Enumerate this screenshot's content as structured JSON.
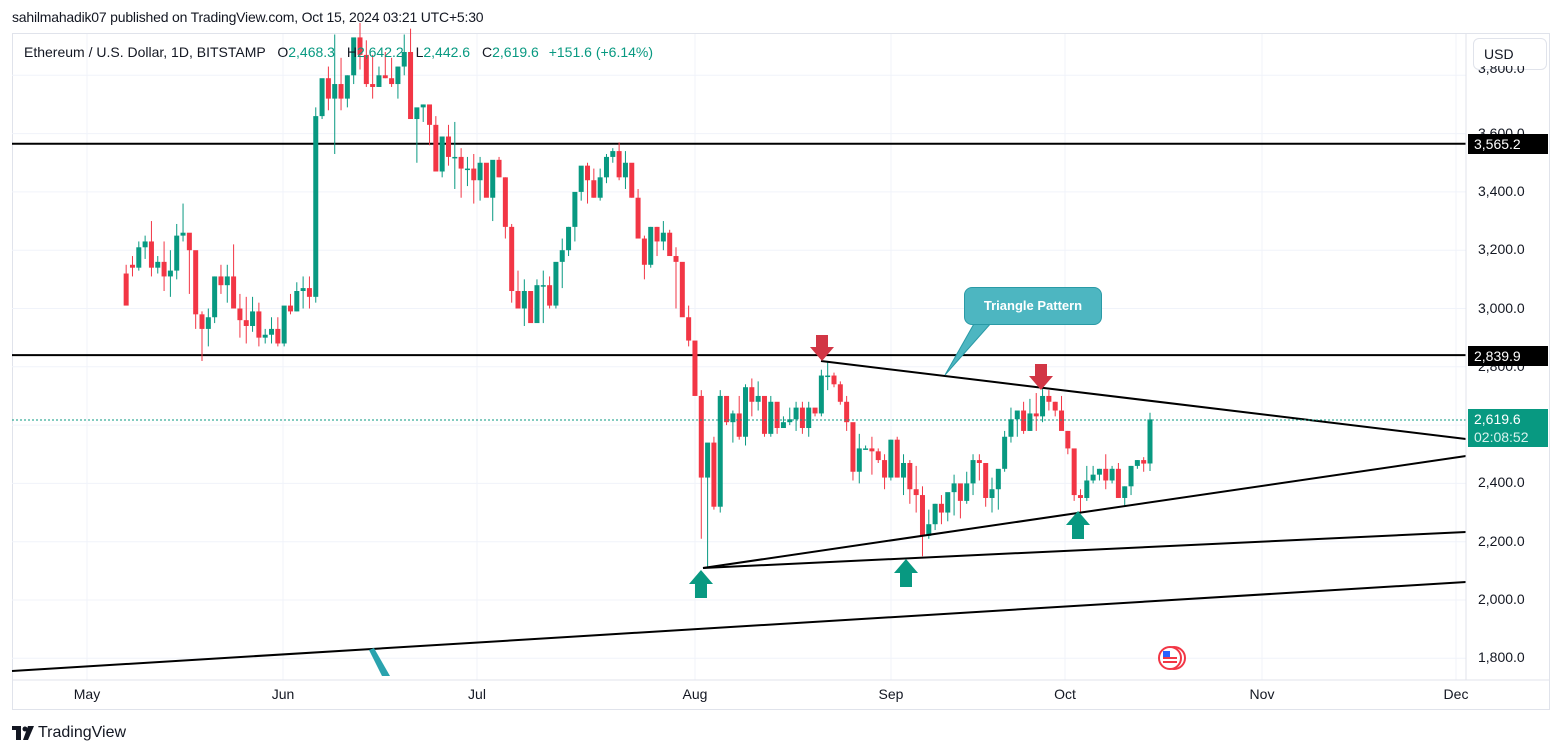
{
  "header": {
    "publish_line": "sahilmahadik07 published on TradingView.com, Oct 15, 2024 03:21 UTC+5:30"
  },
  "legend": {
    "symbol": "Ethereum / U.S. Dollar, 1D, BITSTAMP",
    "open_label": "O",
    "open": "2,468.3",
    "high_label": "H",
    "high": "2,642.2",
    "low_label": "L",
    "low": "2,442.6",
    "close_label": "C",
    "close": "2,619.6",
    "change": "+151.6 (+6.14%)"
  },
  "currency_button": "USD",
  "price_axis": {
    "ticks": [
      "3,800.0",
      "3,600.0",
      "3,400.0",
      "3,200.0",
      "3,000.0",
      "2,800.0",
      "2,600.0",
      "2,400.0",
      "2,200.0",
      "2,000.0",
      "1,800.0"
    ],
    "labels": {
      "resistance_upper": "3,565.2",
      "resistance_lower": "2,839.9",
      "last_price": "2,619.6",
      "countdown": "02:08:52"
    }
  },
  "time_axis": {
    "ticks": [
      "May",
      "Jun",
      "Jul",
      "Aug",
      "Sep",
      "Oct",
      "Nov",
      "Dec"
    ]
  },
  "annotations": {
    "callout_text": "Triangle Pattern"
  },
  "branding": {
    "logo_text": "TradingView"
  },
  "colors": {
    "up": "#089981",
    "down": "#f23645",
    "line": "#000000",
    "callout": "#4db6c1",
    "arrow_down": "#d23645",
    "arrow_up": "#089981"
  },
  "chart_data": {
    "type": "candlestick",
    "title": "Ethereum / U.S. Dollar, 1D, BITSTAMP",
    "xlabel": "",
    "ylabel": "USD",
    "ylim": [
      1750,
      3950
    ],
    "x_range": [
      "2024-04-25",
      "2024-12-01"
    ],
    "grid": true,
    "horizontal_levels": [
      3565.2,
      2839.9
    ],
    "last": {
      "open": 2468.3,
      "high": 2642.2,
      "low": 2442.6,
      "close": 2619.6,
      "change": 151.6,
      "change_pct": 6.14
    },
    "trendlines": [
      {
        "name": "triangle-upper",
        "from": [
          "2024-08-23",
          2820
        ],
        "to": [
          "2024-12-01",
          2540
        ]
      },
      {
        "name": "triangle-lower",
        "from": [
          "2024-08-05",
          2110
        ],
        "to": [
          "2024-12-01",
          2500
        ]
      },
      {
        "name": "support-1",
        "from": [
          "2024-08-05",
          2110
        ],
        "to": [
          "2024-12-01",
          2230
        ]
      },
      {
        "name": "support-2",
        "from": [
          "2024-04-25",
          1760
        ],
        "to": [
          "2024-12-01",
          2060
        ]
      }
    ],
    "markers": [
      {
        "type": "down-arrow",
        "date": "2024-08-23",
        "price": 2840
      },
      {
        "type": "down-arrow",
        "date": "2024-09-27",
        "price": 2720
      },
      {
        "type": "up-arrow",
        "date": "2024-08-05",
        "price": 2110
      },
      {
        "type": "up-arrow",
        "date": "2024-09-06",
        "price": 2150
      },
      {
        "type": "up-arrow",
        "date": "2024-10-03",
        "price": 2310
      }
    ],
    "candles": [
      [
        3120,
        3150,
        3060,
        3010
      ],
      [
        3150,
        3180,
        3110,
        3140
      ],
      [
        3140,
        3230,
        3130,
        3210
      ],
      [
        3210,
        3250,
        3170,
        3230
      ],
      [
        3230,
        3300,
        3110,
        3140
      ],
      [
        3140,
        3180,
        3120,
        3160
      ],
      [
        3160,
        3230,
        3060,
        3110
      ],
      [
        3110,
        3200,
        3040,
        3130
      ],
      [
        3130,
        3290,
        3100,
        3250
      ],
      [
        3250,
        3360,
        3230,
        3260
      ],
      [
        3260,
        3240,
        3050,
        3200
      ],
      [
        3200,
        3190,
        2930,
        2980
      ],
      [
        2980,
        2990,
        2820,
        2930
      ],
      [
        2930,
        3000,
        2870,
        2970
      ],
      [
        2970,
        3110,
        2950,
        3110
      ],
      [
        3110,
        3150,
        3050,
        3080
      ],
      [
        3080,
        3150,
        3020,
        3110
      ],
      [
        3110,
        3220,
        3020,
        3000
      ],
      [
        3000,
        3050,
        2900,
        2960
      ],
      [
        2960,
        3040,
        2880,
        2940
      ],
      [
        2940,
        3040,
        2920,
        2990
      ],
      [
        2990,
        3020,
        2870,
        2900
      ],
      [
        2900,
        2930,
        2880,
        2910
      ],
      [
        2910,
        2970,
        2880,
        2930
      ],
      [
        2930,
        2970,
        2870,
        2880
      ],
      [
        2880,
        2950,
        2870,
        3010
      ],
      [
        3010,
        3050,
        2980,
        2990
      ],
      [
        2990,
        3090,
        2990,
        3060
      ],
      [
        3060,
        3110,
        3000,
        3070
      ],
      [
        3070,
        3110,
        3000,
        3040
      ],
      [
        3040,
        3690,
        3020,
        3660
      ],
      [
        3660,
        3720,
        3650,
        3790
      ],
      [
        3790,
        3830,
        3680,
        3720
      ],
      [
        3720,
        3940,
        3530,
        3770
      ],
      [
        3770,
        3860,
        3680,
        3720
      ],
      [
        3720,
        3800,
        3690,
        3800
      ],
      [
        3800,
        3910,
        3770,
        3930
      ],
      [
        3930,
        3980,
        3820,
        3870
      ],
      [
        3870,
        3920,
        3760,
        3770
      ],
      [
        3770,
        3870,
        3720,
        3760
      ],
      [
        3760,
        3830,
        3760,
        3800
      ],
      [
        3800,
        3880,
        3790,
        3790
      ],
      [
        3790,
        3860,
        3760,
        3770
      ],
      [
        3770,
        3830,
        3720,
        3830
      ],
      [
        3830,
        3940,
        3800,
        3880
      ],
      [
        3880,
        3960,
        3800,
        3650
      ],
      [
        3650,
        3680,
        3500,
        3690
      ],
      [
        3690,
        3700,
        3640,
        3700
      ],
      [
        3700,
        3680,
        3560,
        3630
      ],
      [
        3630,
        3660,
        3470,
        3470
      ],
      [
        3470,
        3590,
        3450,
        3590
      ],
      [
        3590,
        3630,
        3490,
        3520
      ],
      [
        3520,
        3640,
        3410,
        3520
      ],
      [
        3520,
        3550,
        3380,
        3480
      ],
      [
        3480,
        3520,
        3420,
        3480
      ],
      [
        3480,
        3530,
        3360,
        3440
      ],
      [
        3440,
        3520,
        3370,
        3500
      ],
      [
        3500,
        3460,
        3390,
        3380
      ],
      [
        3380,
        3500,
        3300,
        3510
      ],
      [
        3510,
        3520,
        3450,
        3450
      ],
      [
        3450,
        3450,
        3240,
        3280
      ],
      [
        3280,
        3290,
        3020,
        3060
      ],
      [
        3060,
        3130,
        3000,
        3000
      ],
      [
        3000,
        3100,
        2940,
        3060
      ],
      [
        3060,
        3040,
        2960,
        2950
      ],
      [
        2950,
        3100,
        2960,
        3080
      ],
      [
        3080,
        3130,
        2950,
        3080
      ],
      [
        3080,
        3110,
        3000,
        3010
      ],
      [
        3010,
        3150,
        3000,
        3160
      ],
      [
        3160,
        3240,
        3070,
        3200
      ],
      [
        3200,
        3280,
        3180,
        3280
      ],
      [
        3280,
        3340,
        3230,
        3400
      ],
      [
        3400,
        3470,
        3370,
        3490
      ],
      [
        3490,
        3500,
        3360,
        3440
      ],
      [
        3440,
        3480,
        3380,
        3380
      ],
      [
        3380,
        3480,
        3370,
        3450
      ],
      [
        3450,
        3530,
        3430,
        3520
      ],
      [
        3520,
        3550,
        3500,
        3540
      ],
      [
        3540,
        3570,
        3440,
        3450
      ],
      [
        3450,
        3540,
        3410,
        3500
      ],
      [
        3500,
        3490,
        3380,
        3380
      ],
      [
        3380,
        3410,
        3320,
        3240
      ],
      [
        3240,
        3250,
        3100,
        3150
      ],
      [
        3150,
        3280,
        3140,
        3280
      ],
      [
        3280,
        3280,
        3180,
        3230
      ],
      [
        3230,
        3300,
        3200,
        3260
      ],
      [
        3260,
        3270,
        3190,
        3180
      ],
      [
        3180,
        3210,
        3000,
        3160
      ],
      [
        3160,
        3140,
        2990,
        2970
      ],
      [
        2970,
        3010,
        2870,
        2890
      ],
      [
        2890,
        2880,
        2810,
        2700
      ],
      [
        2700,
        2720,
        2210,
        2420
      ],
      [
        2420,
        2530,
        2110,
        2540
      ],
      [
        2540,
        2560,
        2310,
        2320
      ],
      [
        2320,
        2720,
        2300,
        2700
      ],
      [
        2700,
        2660,
        2600,
        2610
      ],
      [
        2610,
        2650,
        2540,
        2640
      ],
      [
        2640,
        2700,
        2550,
        2560
      ],
      [
        2560,
        2740,
        2530,
        2730
      ],
      [
        2730,
        2760,
        2630,
        2680
      ],
      [
        2680,
        2750,
        2650,
        2700
      ],
      [
        2700,
        2660,
        2560,
        2570
      ],
      [
        2570,
        2700,
        2560,
        2680
      ],
      [
        2680,
        2630,
        2570,
        2590
      ],
      [
        2590,
        2630,
        2590,
        2610
      ],
      [
        2610,
        2660,
        2600,
        2620
      ],
      [
        2620,
        2680,
        2580,
        2660
      ],
      [
        2660,
        2680,
        2570,
        2590
      ],
      [
        2590,
        2680,
        2560,
        2660
      ],
      [
        2660,
        2640,
        2630,
        2640
      ],
      [
        2640,
        2790,
        2630,
        2770
      ],
      [
        2770,
        2820,
        2720,
        2770
      ],
      [
        2770,
        2780,
        2730,
        2740
      ],
      [
        2740,
        2750,
        2670,
        2680
      ],
      [
        2680,
        2700,
        2580,
        2610
      ],
      [
        2610,
        2600,
        2410,
        2440
      ],
      [
        2440,
        2570,
        2400,
        2520
      ],
      [
        2520,
        2530,
        2520,
        2520
      ],
      [
        2520,
        2560,
        2430,
        2510
      ],
      [
        2510,
        2520,
        2470,
        2480
      ],
      [
        2480,
        2500,
        2380,
        2420
      ],
      [
        2420,
        2550,
        2410,
        2550
      ],
      [
        2550,
        2560,
        2420,
        2420
      ],
      [
        2420,
        2500,
        2360,
        2470
      ],
      [
        2470,
        2480,
        2330,
        2380
      ],
      [
        2380,
        2460,
        2300,
        2360
      ],
      [
        2360,
        2390,
        2150,
        2220
      ],
      [
        2220,
        2310,
        2210,
        2260
      ],
      [
        2260,
        2330,
        2240,
        2330
      ],
      [
        2330,
        2360,
        2260,
        2300
      ],
      [
        2300,
        2340,
        2270,
        2370
      ],
      [
        2370,
        2430,
        2290,
        2400
      ],
      [
        2400,
        2380,
        2280,
        2340
      ],
      [
        2340,
        2440,
        2330,
        2400
      ],
      [
        2400,
        2500,
        2360,
        2480
      ],
      [
        2480,
        2500,
        2410,
        2470
      ],
      [
        2470,
        2470,
        2320,
        2350
      ],
      [
        2350,
        2420,
        2300,
        2380
      ],
      [
        2380,
        2420,
        2310,
        2450
      ],
      [
        2450,
        2580,
        2440,
        2560
      ],
      [
        2560,
        2660,
        2540,
        2620
      ],
      [
        2620,
        2640,
        2560,
        2650
      ],
      [
        2650,
        2680,
        2570,
        2580
      ],
      [
        2580,
        2690,
        2580,
        2640
      ],
      [
        2640,
        2710,
        2580,
        2630
      ],
      [
        2630,
        2740,
        2610,
        2700
      ],
      [
        2700,
        2720,
        2650,
        2680
      ],
      [
        2680,
        2680,
        2630,
        2650
      ],
      [
        2650,
        2700,
        2600,
        2580
      ],
      [
        2580,
        2580,
        2500,
        2520
      ],
      [
        2520,
        2500,
        2340,
        2360
      ],
      [
        2360,
        2380,
        2300,
        2350
      ],
      [
        2350,
        2460,
        2340,
        2410
      ],
      [
        2410,
        2460,
        2400,
        2430
      ],
      [
        2430,
        2450,
        2410,
        2450
      ],
      [
        2450,
        2500,
        2380,
        2410
      ],
      [
        2410,
        2460,
        2400,
        2450
      ],
      [
        2450,
        2470,
        2350,
        2350
      ],
      [
        2350,
        2390,
        2320,
        2390
      ],
      [
        2390,
        2460,
        2360,
        2460
      ],
      [
        2460,
        2480,
        2450,
        2480
      ],
      [
        2480,
        2490,
        2440,
        2468
      ],
      [
        2468.3,
        2642.2,
        2442.6,
        2619.6
      ]
    ]
  }
}
